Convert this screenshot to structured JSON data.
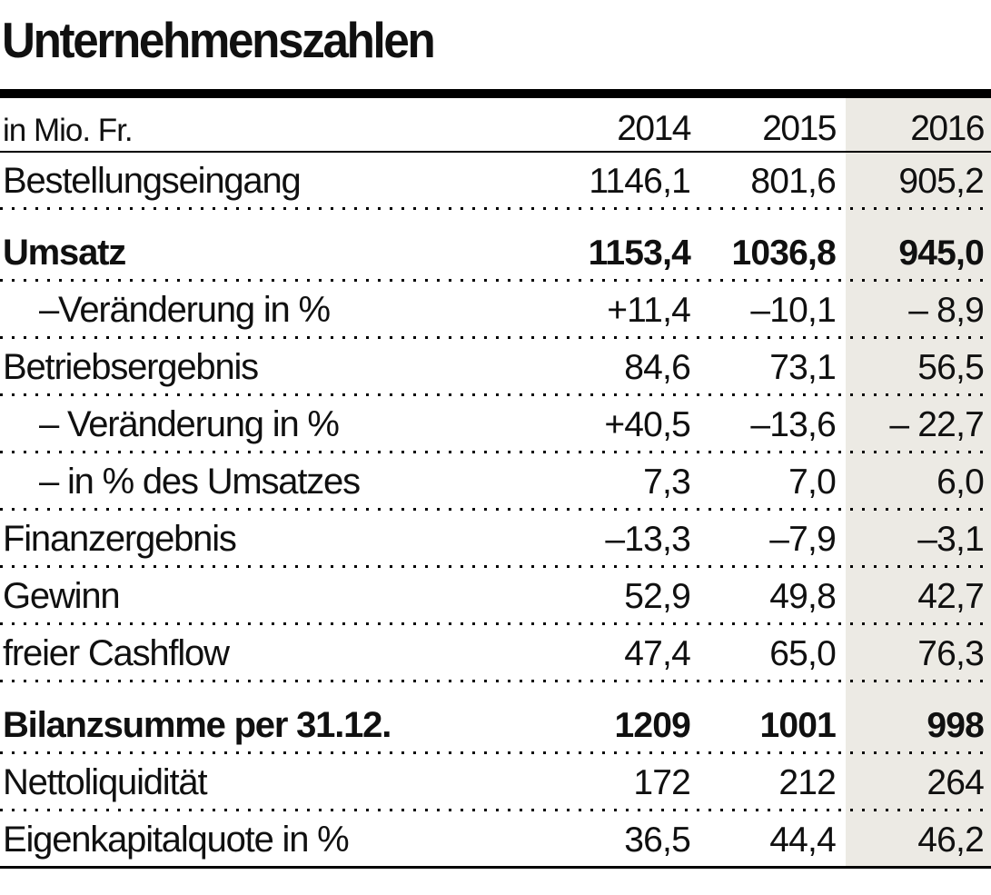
{
  "title": "Unternehmenszahlen",
  "table": {
    "unit_label": "in Mio. Fr.",
    "years": [
      "2014",
      "2015",
      "2016"
    ],
    "rows": [
      {
        "label": "Bestellungseingang",
        "values": [
          "1146,1",
          "801,6",
          "905,2"
        ],
        "bold": false,
        "indent": false
      },
      {
        "label": "Umsatz",
        "values": [
          "1153,4",
          "1036,8",
          "945,0"
        ],
        "bold": true,
        "indent": false
      },
      {
        "label": "–Veränderung in %",
        "values": [
          "+11,4",
          "–10,1",
          "– 8,9"
        ],
        "bold": false,
        "indent": true
      },
      {
        "label": "Betriebsergebnis",
        "values": [
          "84,6",
          "73,1",
          "56,5"
        ],
        "bold": false,
        "indent": false
      },
      {
        "label": "– Veränderung in %",
        "values": [
          "+40,5",
          "–13,6",
          "– 22,7"
        ],
        "bold": false,
        "indent": true
      },
      {
        "label": "– in % des Umsatzes",
        "values": [
          "7,3",
          "7,0",
          "6,0"
        ],
        "bold": false,
        "indent": true
      },
      {
        "label": "Finanzergebnis",
        "values": [
          "–13,3",
          "–7,9",
          "–3,1"
        ],
        "bold": false,
        "indent": false
      },
      {
        "label": "Gewinn",
        "values": [
          "52,9",
          "49,8",
          "42,7"
        ],
        "bold": false,
        "indent": false
      },
      {
        "label": "freier Cashflow",
        "values": [
          "47,4",
          "65,0",
          "76,3"
        ],
        "bold": false,
        "indent": false
      },
      {
        "label": "Bilanzsumme per 31.12.",
        "values": [
          "1209",
          "1001",
          "998"
        ],
        "bold": true,
        "indent": false
      },
      {
        "label": "Nettoliquidität",
        "values": [
          "172",
          "212",
          "264"
        ],
        "bold": false,
        "indent": false
      },
      {
        "label": "Eigenkapitalquote in %",
        "values": [
          "36,5",
          "44,4",
          "46,2"
        ],
        "bold": false,
        "indent": false
      }
    ]
  },
  "colors": {
    "highlight_column_bg": "#ECEAE4",
    "text": "#101010",
    "rule": "#000000"
  },
  "chart_data": {
    "type": "table",
    "title": "Unternehmenszahlen",
    "unit": "in Mio. Fr.",
    "columns": [
      "2014",
      "2015",
      "2016"
    ],
    "highlighted_column": "2016",
    "rows": [
      {
        "label": "Bestellungseingang",
        "values": [
          1146.1,
          801.6,
          905.2
        ]
      },
      {
        "label": "Umsatz",
        "values": [
          1153.4,
          1036.8,
          945.0
        ],
        "emphasis": true
      },
      {
        "label": "Umsatz – Veränderung in %",
        "values": [
          11.4,
          -10.1,
          -8.9
        ]
      },
      {
        "label": "Betriebsergebnis",
        "values": [
          84.6,
          73.1,
          56.5
        ]
      },
      {
        "label": "Betriebsergebnis – Veränderung in %",
        "values": [
          40.5,
          -13.6,
          -22.7
        ]
      },
      {
        "label": "Betriebsergebnis – in % des Umsatzes",
        "values": [
          7.3,
          7.0,
          6.0
        ]
      },
      {
        "label": "Finanzergebnis",
        "values": [
          -13.3,
          -7.9,
          -3.1
        ]
      },
      {
        "label": "Gewinn",
        "values": [
          52.9,
          49.8,
          42.7
        ]
      },
      {
        "label": "freier Cashflow",
        "values": [
          47.4,
          65.0,
          76.3
        ]
      },
      {
        "label": "Bilanzsumme per 31.12.",
        "values": [
          1209,
          1001,
          998
        ],
        "emphasis": true
      },
      {
        "label": "Nettoliquidität",
        "values": [
          172,
          212,
          264
        ]
      },
      {
        "label": "Eigenkapitalquote in %",
        "values": [
          36.5,
          44.4,
          46.2
        ]
      }
    ]
  }
}
